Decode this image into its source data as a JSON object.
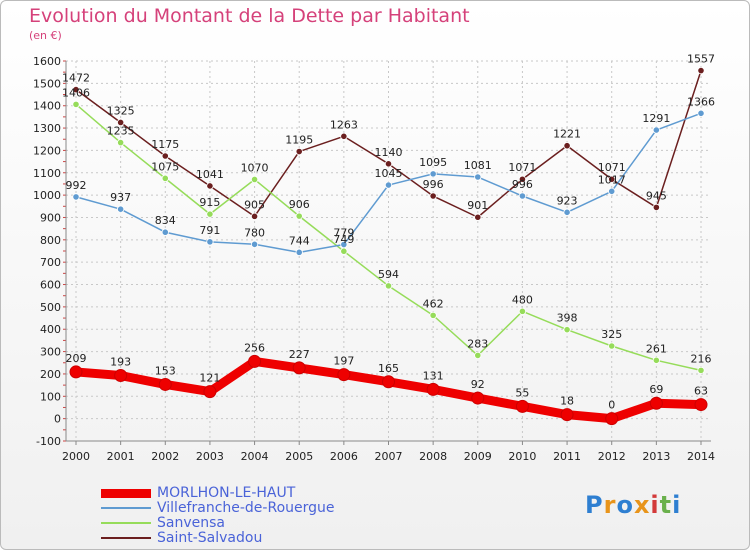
{
  "chart_data": {
    "type": "line",
    "title": "Evolution du Montant de la Dette par Habitant",
    "subtitle": "(en €)",
    "x": [
      "2000",
      "2001",
      "2002",
      "2003",
      "2004",
      "2005",
      "2006",
      "2007",
      "2008",
      "2009",
      "2010",
      "2011",
      "2012",
      "2013",
      "2014"
    ],
    "ylim": [
      -100,
      1600
    ],
    "yticks": [
      -100,
      0,
      100,
      200,
      300,
      400,
      500,
      600,
      700,
      800,
      900,
      1000,
      1100,
      1200,
      1300,
      1400,
      1500,
      1600
    ],
    "grid": true,
    "series": [
      {
        "name": "MORLHON-LE-HAUT",
        "color": "#ee0000",
        "values": [
          209,
          193,
          153,
          121,
          256,
          227,
          197,
          165,
          131,
          92,
          55,
          18,
          0,
          69,
          63
        ]
      },
      {
        "name": "Villefranche-de-Rouergue",
        "color": "#5f9bd1",
        "values": [
          992,
          937,
          834,
          791,
          780,
          744,
          779,
          1045,
          1095,
          1081,
          996,
          923,
          1017,
          1291,
          1366
        ]
      },
      {
        "name": "Sanvensa",
        "color": "#96dc5a",
        "values": [
          1406,
          1235,
          1075,
          915,
          1070,
          906,
          749,
          594,
          462,
          283,
          480,
          398,
          325,
          261,
          216
        ]
      },
      {
        "name": "Saint-Salvadou",
        "color": "#6b1f1f",
        "values": [
          1472,
          1325,
          1175,
          1041,
          905,
          1195,
          1263,
          1140,
          996,
          901,
          1071,
          1221,
          1071,
          945,
          1557
        ]
      }
    ]
  },
  "logo": {
    "text": "Proxiti"
  }
}
